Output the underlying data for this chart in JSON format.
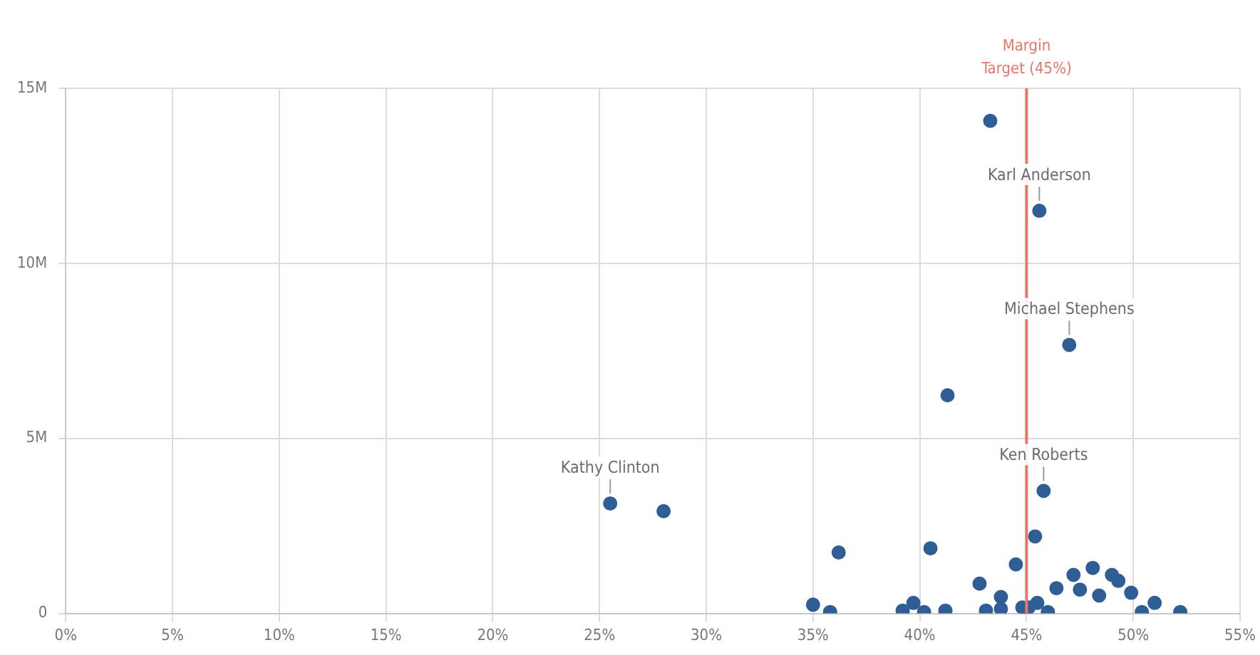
{
  "chart_data": {
    "type": "scatter",
    "x": [
      43.3,
      45.6,
      47.0,
      41.3,
      25.5,
      28.0,
      45.8,
      45.4,
      36.2,
      40.5,
      35.0,
      35.8,
      39.2,
      39.7,
      40.2,
      41.2,
      42.8,
      43.1,
      43.8,
      43.8,
      44.5,
      44.8,
      45.1,
      45.5,
      46.0,
      46.4,
      47.2,
      47.5,
      48.1,
      48.4,
      49.0,
      49.3,
      49.9,
      50.4,
      51.0,
      52.2
    ],
    "series": [
      {
        "color": "#2e5e95",
        "values": [
          14070000,
          11500000,
          7670000,
          6230000,
          3140000,
          2920000,
          3500000,
          2200000,
          1740000,
          1860000,
          250000,
          40000,
          80000,
          300000,
          40000,
          80000,
          850000,
          80000,
          470000,
          130000,
          1400000,
          170000,
          170000,
          300000,
          40000,
          720000,
          1100000,
          680000,
          1300000,
          510000,
          1100000,
          930000,
          590000,
          40000,
          300000,
          40000
        ]
      }
    ],
    "xlim": [
      0,
      55
    ],
    "xticks": [
      {
        "value": 0,
        "label": "0%"
      },
      {
        "value": 5,
        "label": "5%"
      },
      {
        "value": 10,
        "label": "10%"
      },
      {
        "value": 15,
        "label": "15%"
      },
      {
        "value": 20,
        "label": "20%"
      },
      {
        "value": 25,
        "label": "25%"
      },
      {
        "value": 30,
        "label": "30%"
      },
      {
        "value": 35,
        "label": "35%"
      },
      {
        "value": 40,
        "label": "40%"
      },
      {
        "value": 45,
        "label": "45%"
      },
      {
        "value": 50,
        "label": "50%"
      },
      {
        "value": 55,
        "label": "55%"
      }
    ],
    "ylim": [
      0,
      15000000
    ],
    "yticks": [
      0,
      {
        "value": 5000000,
        "label": "5M"
      },
      {
        "value": 10000000,
        "label": "10M"
      },
      {
        "value": 15000000,
        "label": "15M"
      }
    ],
    "grid": true,
    "marker": "circle",
    "legend": false,
    "ref_lines": [
      {
        "axis": "x",
        "value": 45,
        "label": "Margin Target (45%)",
        "color": "#e8756a"
      }
    ],
    "annotations": [
      {
        "text": "Karl Anderson",
        "x": 45.6,
        "y": 11500000
      },
      {
        "text": "Michael Stephens",
        "x": 47.0,
        "y": 7670000
      },
      {
        "text": "Kathy Clinton",
        "x": 25.5,
        "y": 3140000
      },
      {
        "text": "Ken Roberts",
        "x": 45.8,
        "y": 3500000
      }
    ]
  }
}
